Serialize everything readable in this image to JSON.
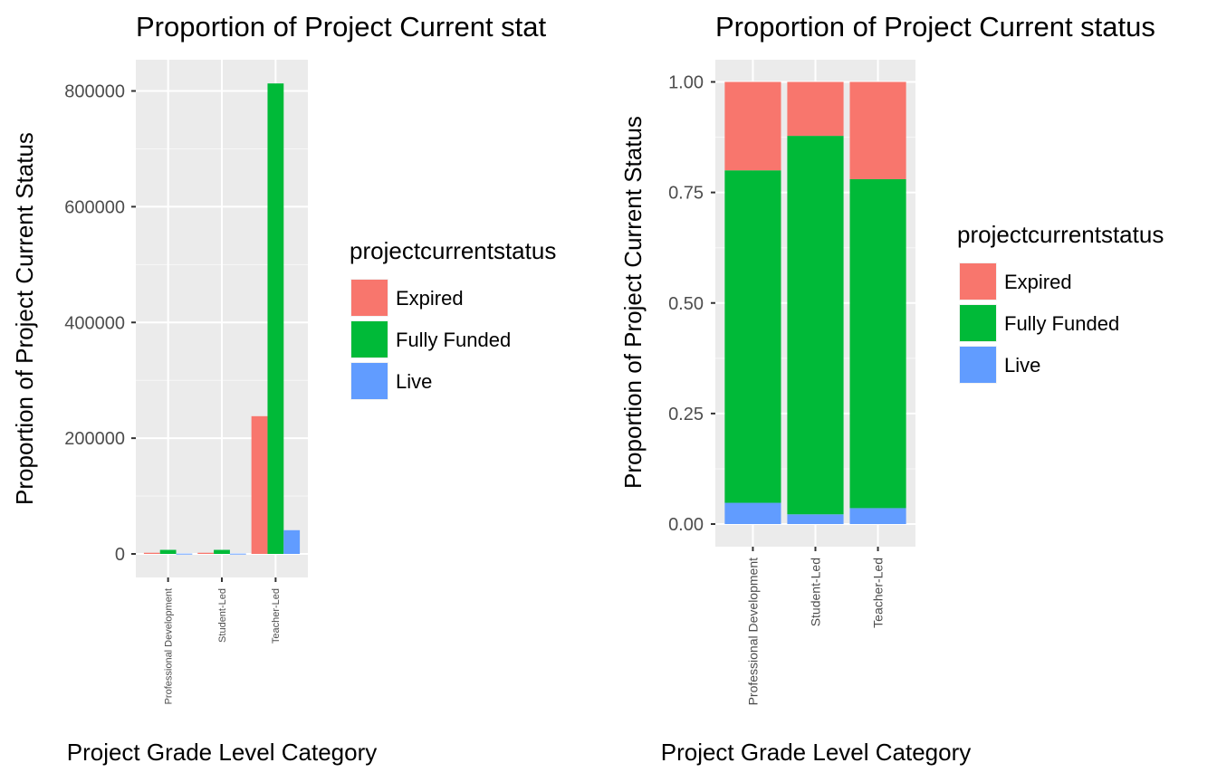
{
  "chart_data": [
    {
      "type": "bar",
      "position": "dodge",
      "title": "Proportion of Project Current stat",
      "xlabel": "Project Grade Level Category",
      "ylabel": "Proportion of Project Current Status",
      "categories": [
        "Professional Development",
        "Student-Led",
        "Teacher-Led"
      ],
      "ylim": [
        -40000,
        860000
      ],
      "yticks": [
        0,
        200000,
        400000,
        600000,
        800000
      ],
      "ytick_labels": [
        "0",
        "200000",
        "400000",
        "600000",
        "800000"
      ],
      "grid": true,
      "legend_title": "projectcurrentstatus",
      "legend_position": "right",
      "series": [
        {
          "name": "Expired",
          "color": "#F8766D",
          "values": [
            2000,
            2000,
            238000
          ]
        },
        {
          "name": "Fully Funded",
          "color": "#00BA38",
          "values": [
            7000,
            7000,
            813000
          ]
        },
        {
          "name": "Live",
          "color": "#619CFF",
          "values": [
            500,
            500,
            41000
          ]
        }
      ]
    },
    {
      "type": "bar",
      "position": "stack",
      "title": "Proportion of Project Current status",
      "xlabel": "Project Grade Level Category",
      "ylabel": "Proportion of Project Current Status",
      "categories": [
        "Professional Development",
        "Student-Led",
        "Teacher-Led"
      ],
      "ylim": [
        -0.05,
        1.05
      ],
      "yticks": [
        0,
        0.25,
        0.5,
        0.75,
        1.0
      ],
      "ytick_labels": [
        "0.00",
        "0.25",
        "0.50",
        "0.75",
        "1.00"
      ],
      "grid": true,
      "legend_title": "projectcurrentstatus",
      "legend_position": "right",
      "series": [
        {
          "name": "Expired",
          "color": "#F8766D",
          "values": [
            0.2,
            0.122,
            0.22
          ]
        },
        {
          "name": "Fully Funded",
          "color": "#00BA38",
          "values": [
            0.752,
            0.856,
            0.744
          ]
        },
        {
          "name": "Live",
          "color": "#619CFF",
          "values": [
            0.048,
            0.022,
            0.036
          ]
        }
      ]
    }
  ]
}
